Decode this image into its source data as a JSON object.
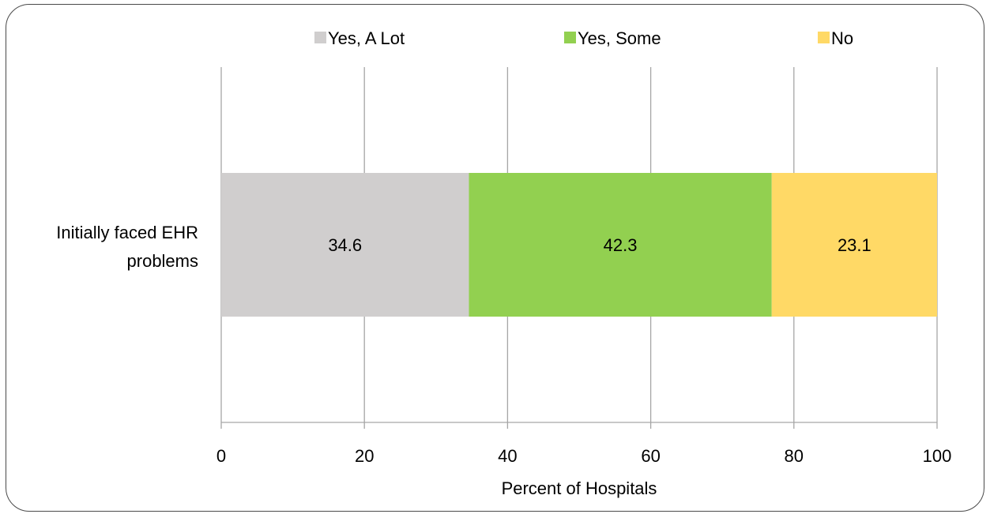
{
  "chart_data": {
    "type": "bar",
    "orientation": "horizontal",
    "stacked": true,
    "categories": [
      "Initially faced EHR problems"
    ],
    "series": [
      {
        "name": "Yes, A Lot",
        "values": [
          34.6
        ],
        "color": "#d0cece"
      },
      {
        "name": "Yes, Some",
        "values": [
          42.3
        ],
        "color": "#92d050"
      },
      {
        "name": "No",
        "values": [
          23.1
        ],
        "color": "#ffd966"
      }
    ],
    "data_labels": [
      "34.6",
      "42.3",
      "23.1"
    ],
    "category_label_lines": [
      "Initially faced EHR",
      "problems"
    ],
    "xlabel": "Percent of Hospitals",
    "xlim": [
      0,
      100
    ],
    "xticks": [
      0,
      20,
      40,
      60,
      80,
      100
    ],
    "xtick_labels": [
      "0",
      "20",
      "40",
      "60",
      "80",
      "100"
    ],
    "grid": "vertical",
    "gridline_color": "#a6a6a6",
    "legend_position": "top"
  }
}
